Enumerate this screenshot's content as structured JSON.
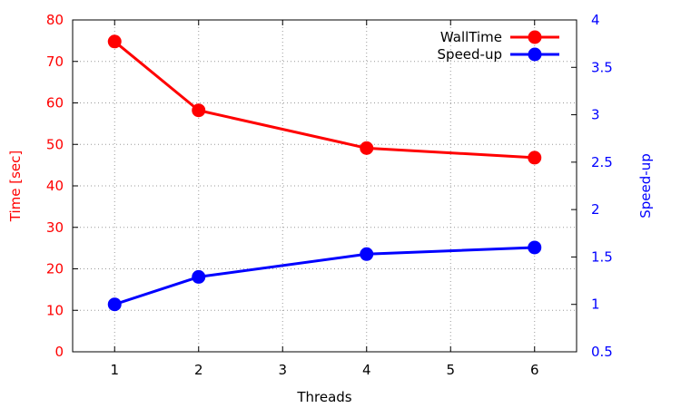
{
  "chart_data": {
    "type": "line",
    "xlabel": "Threads",
    "x_ticks": [
      "1",
      "2",
      "3",
      "4",
      "5",
      "6"
    ],
    "x": [
      1,
      2,
      4,
      6
    ],
    "xlim": [
      0.5,
      6.5
    ],
    "y_left": {
      "label": "Time [sec]",
      "lim": [
        0,
        80
      ],
      "ticks": [
        "0",
        "10",
        "20",
        "30",
        "40",
        "50",
        "60",
        "70",
        "80"
      ],
      "color": "#ff0000"
    },
    "y_right": {
      "label": "Speed-up",
      "lim": [
        0.5,
        4
      ],
      "ticks": [
        "0.5",
        "1",
        "1.5",
        "2",
        "2.5",
        "3",
        "3.5",
        "4"
      ],
      "color": "#0000ff"
    },
    "grid": true,
    "legend_position": "top-right",
    "series": [
      {
        "name": "WallTime",
        "axis": "left",
        "color": "#ff0000",
        "values": [
          74.8,
          58.2,
          49.1,
          46.8
        ]
      },
      {
        "name": "Speed-up",
        "axis": "right",
        "color": "#0000ff",
        "values": [
          1.0,
          1.29,
          1.53,
          1.6
        ]
      }
    ]
  }
}
